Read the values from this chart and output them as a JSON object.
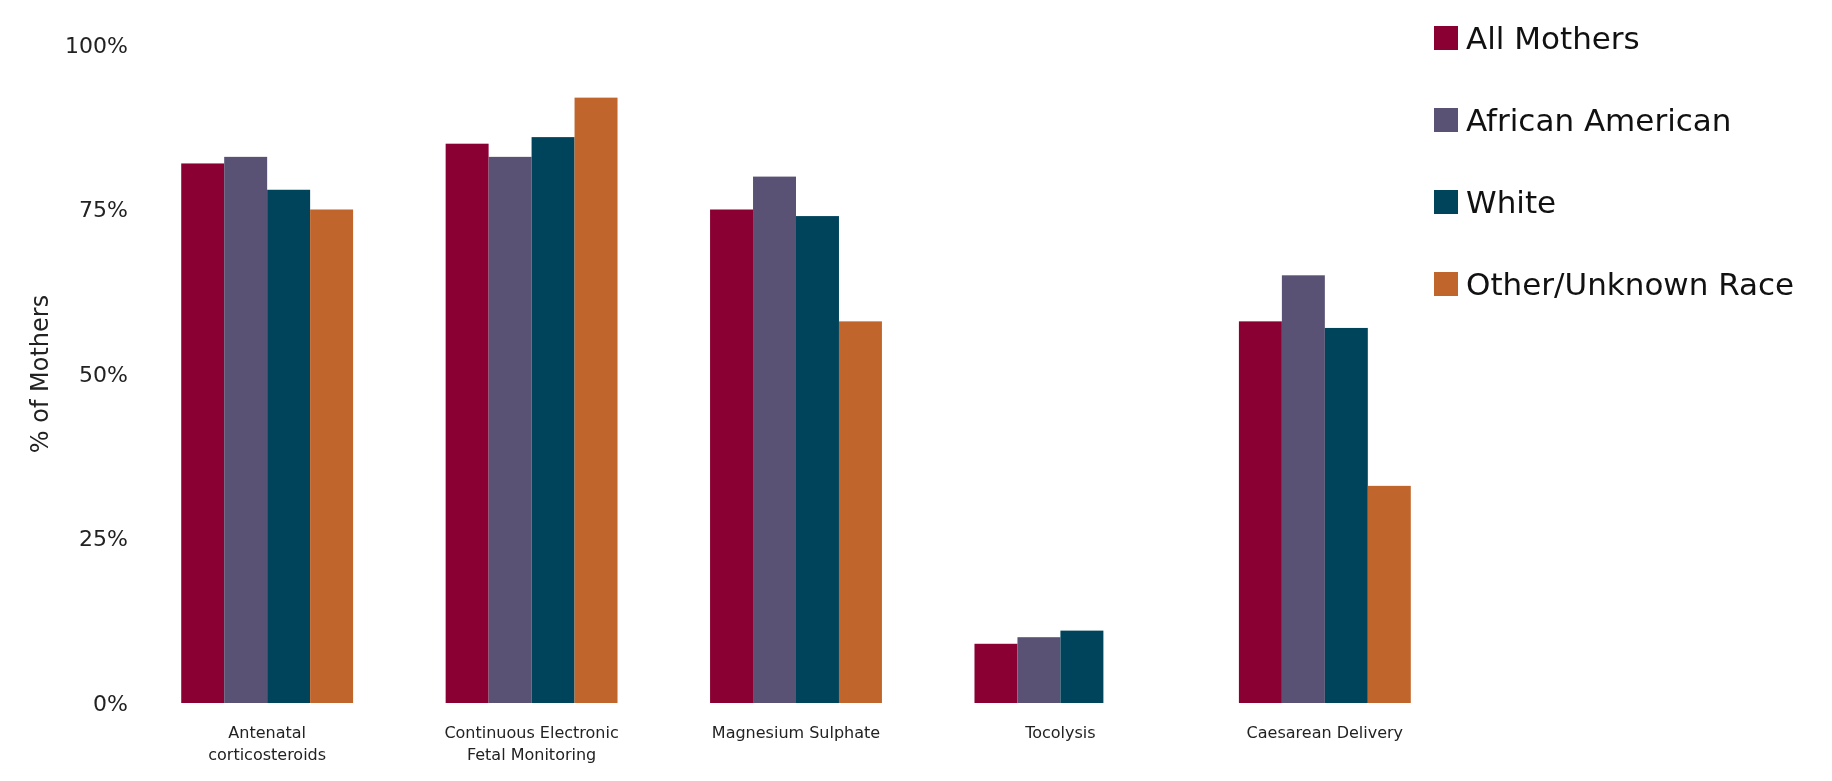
{
  "chart_data": {
    "type": "bar",
    "ylabel": "% of Mothers",
    "categories": [
      "Antenatal corticosteroids",
      "Continuous Electronic Fetal Monitoring",
      "Magnesium Sulphate",
      "Tocolysis",
      "Caesarean Delivery"
    ],
    "series": [
      {
        "name": "All Mothers",
        "color": "#8b0033",
        "values": [
          82,
          85,
          75,
          9,
          58
        ]
      },
      {
        "name": "African American",
        "color": "#5a5274",
        "values": [
          83,
          83,
          80,
          10,
          65
        ]
      },
      {
        "name": "White",
        "color": "#00445c",
        "values": [
          78,
          86,
          74,
          11,
          57
        ]
      },
      {
        "name": "Other/Unknown Race",
        "color": "#c0652b",
        "values": [
          75,
          92,
          58,
          null,
          33
        ]
      }
    ],
    "ylim": [
      0,
      100
    ],
    "yticks": [
      {
        "value": 0,
        "label": "0%"
      },
      {
        "value": 25,
        "label": "25%"
      },
      {
        "value": 50,
        "label": "50%"
      },
      {
        "value": 75,
        "label": "75%"
      },
      {
        "value": 100,
        "label": "100%"
      }
    ],
    "grid": false,
    "legend": "top right"
  }
}
